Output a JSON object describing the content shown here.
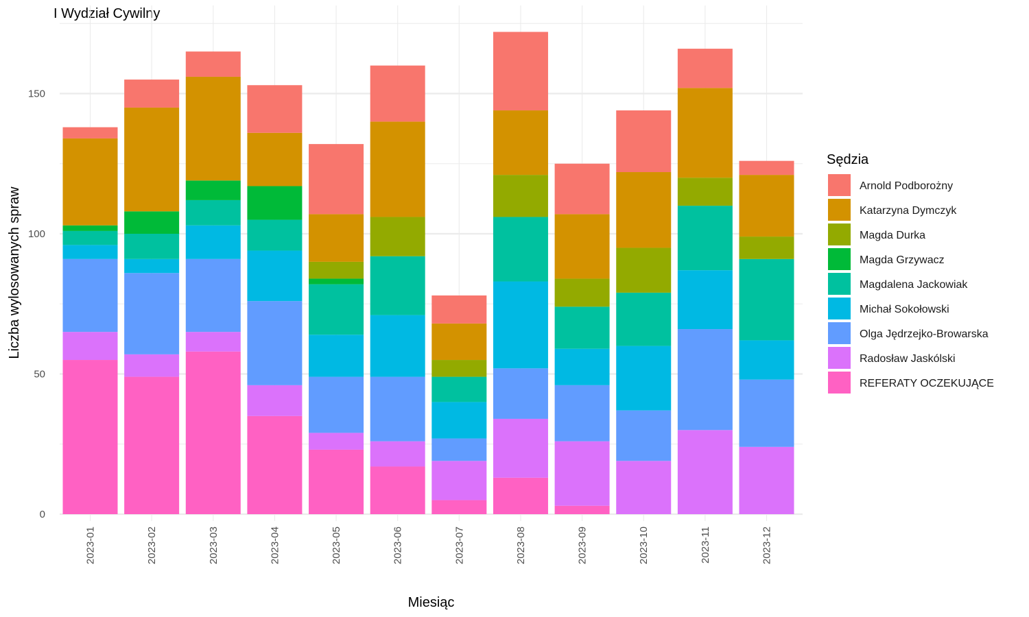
{
  "chart_data": {
    "type": "bar",
    "stacked": true,
    "title": "I Wydział Cywilny",
    "xlabel": "Miesiąc",
    "ylabel": "Liczba wylosowanych spraw",
    "ylim": [
      0,
      175
    ],
    "yticks": [
      0,
      50,
      100,
      150
    ],
    "grid": true,
    "legend_title": "Sędzia",
    "legend_position": "right",
    "categories": [
      "2023-01",
      "2023-02",
      "2023-03",
      "2023-04",
      "2023-05",
      "2023-06",
      "2023-07",
      "2023-08",
      "2023-09",
      "2023-10",
      "2023-11",
      "2023-12"
    ],
    "series": [
      {
        "name": "REFERATY OCZEKUJĄCE",
        "color": "#FF61C3",
        "values": [
          55,
          49,
          58,
          35,
          23,
          17,
          5,
          13,
          3,
          0,
          0,
          0
        ]
      },
      {
        "name": "Radosław Jaskólski",
        "color": "#DB72FB",
        "values": [
          10,
          8,
          7,
          11,
          6,
          9,
          14,
          21,
          23,
          19,
          30,
          24
        ]
      },
      {
        "name": "Olga Jędrzejko-Browarska",
        "color": "#619CFF",
        "values": [
          26,
          29,
          26,
          30,
          20,
          23,
          8,
          18,
          20,
          18,
          36,
          24
        ]
      },
      {
        "name": "Michał Sokołowski",
        "color": "#00B9E3",
        "values": [
          5,
          5,
          12,
          18,
          15,
          22,
          13,
          31,
          13,
          23,
          21,
          14
        ]
      },
      {
        "name": "Magdalena Jackowiak",
        "color": "#00C19F",
        "values": [
          5,
          9,
          9,
          11,
          18,
          21,
          9,
          23,
          15,
          19,
          23,
          29
        ]
      },
      {
        "name": "Magda Grzywacz",
        "color": "#00BA38",
        "values": [
          2,
          8,
          7,
          12,
          2,
          0,
          0,
          0,
          0,
          0,
          0,
          0
        ]
      },
      {
        "name": "Magda Durka",
        "color": "#93AA00",
        "values": [
          0,
          0,
          0,
          0,
          6,
          14,
          6,
          15,
          10,
          16,
          10,
          8
        ]
      },
      {
        "name": "Katarzyna Dymczyk",
        "color": "#D39200",
        "values": [
          31,
          37,
          37,
          19,
          17,
          34,
          13,
          23,
          23,
          27,
          32,
          22
        ]
      },
      {
        "name": "Arnold Podborożny",
        "color": "#F8766D",
        "values": [
          4,
          10,
          9,
          17,
          25,
          20,
          10,
          28,
          18,
          22,
          14,
          5
        ]
      }
    ],
    "legend_order": [
      "Arnold Podborożny",
      "Katarzyna Dymczyk",
      "Magda Durka",
      "Magda Grzywacz",
      "Magdalena Jackowiak",
      "Michał Sokołowski",
      "Olga Jędrzejko-Browarska",
      "Radosław Jaskólski",
      "REFERATY OCZEKUJĄCE"
    ]
  }
}
